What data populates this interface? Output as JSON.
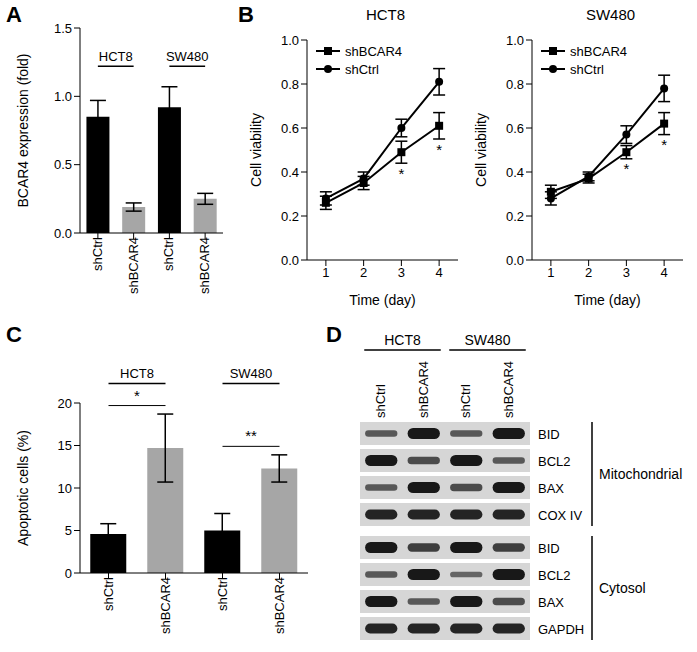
{
  "chart_data": [
    {
      "panel": "A",
      "type": "bar",
      "categories": [
        "shCtrl",
        "shBCAR4",
        "shCtrl",
        "shBCAR4"
      ],
      "values": [
        0.85,
        0.19,
        0.92,
        0.25
      ],
      "errors": [
        0.12,
        0.03,
        0.15,
        0.04
      ],
      "colors": [
        "#000000",
        "#a6a6a6",
        "#000000",
        "#a6a6a6"
      ],
      "ylabel": "BCAR4 expression (fold)",
      "ylim": [
        0,
        1.5
      ],
      "yticks": [
        {
          "value": 0,
          "label": "0.0"
        },
        0.5,
        {
          "value": 1,
          "label": "1.0"
        },
        1.5
      ],
      "groups": [
        {
          "label": "HCT8",
          "categories": [
            0,
            1
          ]
        },
        {
          "label": "SW480",
          "categories": [
            2,
            3
          ]
        }
      ]
    },
    {
      "panel": "B",
      "type": "line",
      "title": "HCT8",
      "xlabel": "Time (day)",
      "ylabel": "Cell viability",
      "x": [
        1,
        2,
        3,
        4
      ],
      "xlim": [
        0.5,
        4.5
      ],
      "xticks": [
        1,
        2,
        3,
        4
      ],
      "ylim": [
        0,
        1
      ],
      "yticks": [
        {
          "value": 0,
          "label": "0.0"
        },
        0.2,
        0.4,
        0.6,
        0.8,
        {
          "value": 1,
          "label": "1.0"
        }
      ],
      "legend": "upper left",
      "series": [
        {
          "name": "shBCAR4",
          "color": "#000000",
          "marker": "square",
          "values": [
            0.26,
            0.35,
            0.49,
            0.61
          ],
          "errors": [
            0.03,
            0.03,
            0.05,
            0.06
          ]
        },
        {
          "name": "shCtrl",
          "color": "#000000",
          "marker": "circle",
          "values": [
            0.28,
            0.37,
            0.6,
            0.81
          ],
          "errors": [
            0.03,
            0.03,
            0.04,
            0.06
          ]
        }
      ],
      "annotations": [
        {
          "text": "*",
          "x": 3
        },
        {
          "text": "*",
          "x": 4
        }
      ]
    },
    {
      "type": "line",
      "title": "SW480",
      "xlabel": "Time (day)",
      "ylabel": "Cell viability",
      "x": [
        1,
        2,
        3,
        4
      ],
      "xlim": [
        0.5,
        4.5
      ],
      "xticks": [
        1,
        2,
        3,
        4
      ],
      "ylim": [
        0,
        1
      ],
      "yticks": [
        {
          "value": 0,
          "label": "0.0"
        },
        0.2,
        0.4,
        0.6,
        0.8,
        {
          "value": 1,
          "label": "1.0"
        }
      ],
      "legend": "upper left",
      "series": [
        {
          "name": "shBCAR4",
          "color": "#000000",
          "marker": "square",
          "values": [
            0.31,
            0.37,
            0.49,
            0.62
          ],
          "errors": [
            0.03,
            0.02,
            0.03,
            0.05
          ]
        },
        {
          "name": "shCtrl",
          "color": "#000000",
          "marker": "circle",
          "values": [
            0.28,
            0.38,
            0.57,
            0.78
          ],
          "errors": [
            0.03,
            0.02,
            0.04,
            0.06
          ]
        }
      ],
      "annotations": [
        {
          "text": "*",
          "x": 3
        },
        {
          "text": "*",
          "x": 4
        }
      ]
    },
    {
      "panel": "C",
      "type": "bar",
      "categories": [
        "shCtrl",
        "shBCAR4",
        "shCtrl",
        "shBCAR4"
      ],
      "values": [
        4.6,
        14.7,
        5.0,
        12.3
      ],
      "errors": [
        1.2,
        4.0,
        2.0,
        1.6
      ],
      "colors": [
        "#000000",
        "#a6a6a6",
        "#000000",
        "#a6a6a6"
      ],
      "ylabel": "Apoptotic cells (%)",
      "ylim": [
        0,
        20
      ],
      "yticks": [
        0,
        5,
        10,
        15,
        20
      ],
      "groups": [
        {
          "label": "HCT8",
          "categories": [
            0,
            1
          ]
        },
        {
          "label": "SW480",
          "categories": [
            2,
            3
          ]
        }
      ],
      "annotations": [
        {
          "text": "*",
          "categories": [
            0,
            1
          ]
        },
        {
          "text": "**",
          "categories": [
            2,
            3
          ]
        }
      ]
    }
  ],
  "western_blot": {
    "panel": "D",
    "lanes": [
      "shCtrl",
      "shBCAR4",
      "shCtrl",
      "shBCAR4"
    ],
    "groups": [
      {
        "label": "HCT8",
        "lanes": [
          0,
          1
        ]
      },
      {
        "label": "SW480",
        "lanes": [
          2,
          3
        ]
      }
    ],
    "sections": [
      {
        "name": "Mitochondrial",
        "rows": [
          {
            "label": "BID",
            "bands": [
              0.4,
              0.9,
              0.4,
              0.9
            ]
          },
          {
            "label": "BCL2",
            "bands": [
              0.9,
              0.5,
              0.9,
              0.4
            ]
          },
          {
            "label": "BAX",
            "bands": [
              0.4,
              0.9,
              0.5,
              0.9
            ]
          },
          {
            "label": "COX IV",
            "bands": [
              0.8,
              0.8,
              0.8,
              0.8
            ]
          }
        ]
      },
      {
        "name": "Cytosol",
        "rows": [
          {
            "label": "BID",
            "bands": [
              0.9,
              0.6,
              0.9,
              0.6
            ]
          },
          {
            "label": "BCL2",
            "bands": [
              0.4,
              0.9,
              0.3,
              0.9
            ]
          },
          {
            "label": "BAX",
            "bands": [
              0.9,
              0.4,
              0.9,
              0.5
            ]
          },
          {
            "label": "GAPDH",
            "bands": [
              0.8,
              0.8,
              0.8,
              0.8
            ]
          }
        ]
      }
    ]
  }
}
